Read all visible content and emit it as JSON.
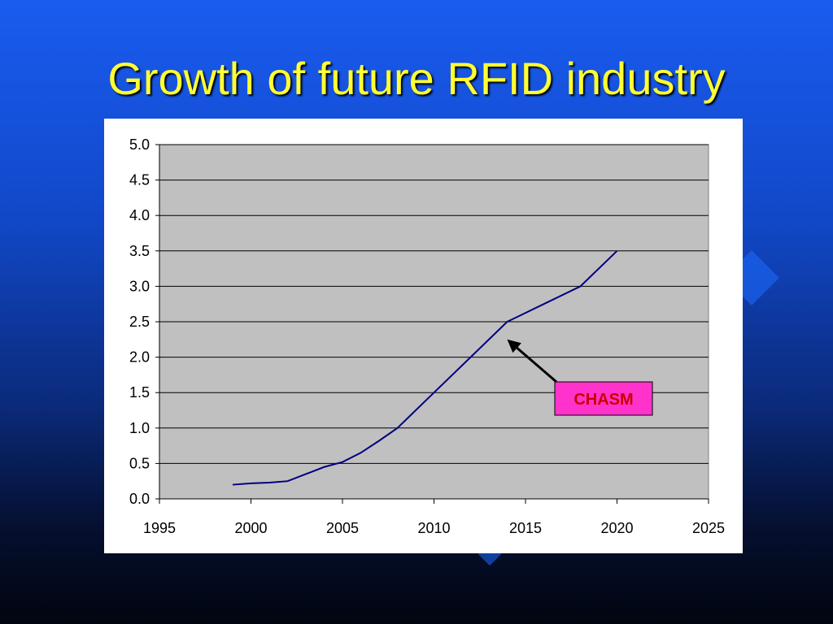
{
  "slide": {
    "title": "Growth of future RFID industry"
  },
  "chart_data": {
    "type": "line",
    "title": "",
    "xlabel": "",
    "ylabel": "",
    "xlim": [
      1995,
      2025
    ],
    "ylim": [
      0,
      5
    ],
    "x_ticks": [
      1995,
      2000,
      2005,
      2010,
      2015,
      2020,
      2025
    ],
    "y_ticks": [
      0,
      0.5,
      1,
      1.5,
      2,
      2.5,
      3,
      3.5,
      4,
      4.5,
      5
    ],
    "grid": true,
    "plot_background": "#c0c0c0",
    "line_color": "#000080",
    "series": [
      {
        "x": [
          1999,
          2000,
          2001,
          2002,
          2003,
          2004,
          2005,
          2006,
          2007,
          2008,
          2010,
          2012,
          2014,
          2016,
          2018,
          2020
        ],
        "y": [
          0.2,
          0.22,
          0.23,
          0.25,
          0.35,
          0.45,
          0.52,
          0.65,
          0.82,
          1.0,
          1.5,
          2.0,
          2.5,
          2.75,
          3.0,
          3.5
        ]
      }
    ],
    "annotation": {
      "text": "CHASM",
      "arrow_to": [
        2014,
        2.25
      ],
      "box_color": "#ff33cc",
      "text_color": "#cc0000"
    }
  }
}
